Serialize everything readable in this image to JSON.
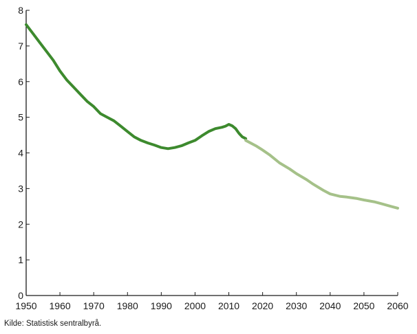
{
  "chart_data": {
    "type": "line",
    "title": "",
    "xlabel": "",
    "ylabel": "",
    "xlim": [
      1950,
      2060
    ],
    "ylim": [
      0,
      8
    ],
    "x_ticks": [
      1950,
      1960,
      1970,
      1980,
      1990,
      2000,
      2010,
      2020,
      2030,
      2040,
      2050,
      2060
    ],
    "y_ticks": [
      0,
      1,
      2,
      3,
      4,
      5,
      6,
      7,
      8
    ],
    "grid": false,
    "legend": "none",
    "series": [
      {
        "color": "#3d8a2e",
        "style": "historical",
        "x": [
          1950,
          1952,
          1954,
          1956,
          1958,
          1960,
          1962,
          1964,
          1966,
          1968,
          1970,
          1972,
          1974,
          1976,
          1978,
          1980,
          1982,
          1984,
          1986,
          1988,
          1990,
          1992,
          1994,
          1996,
          1998,
          2000,
          2002,
          2004,
          2006,
          2008,
          2009,
          2010,
          2011,
          2012,
          2013,
          2014,
          2015
        ],
        "y": [
          7.6,
          7.35,
          7.1,
          6.85,
          6.6,
          6.3,
          6.05,
          5.85,
          5.65,
          5.45,
          5.3,
          5.1,
          5.0,
          4.9,
          4.75,
          4.6,
          4.45,
          4.35,
          4.28,
          4.22,
          4.15,
          4.12,
          4.15,
          4.2,
          4.28,
          4.35,
          4.48,
          4.6,
          4.68,
          4.72,
          4.75,
          4.8,
          4.76,
          4.68,
          4.55,
          4.45,
          4.4
        ]
      },
      {
        "color": "#a5c189",
        "style": "projection",
        "x": [
          2015,
          2018,
          2020,
          2022,
          2025,
          2028,
          2030,
          2033,
          2035,
          2038,
          2040,
          2043,
          2045,
          2048,
          2050,
          2053,
          2055,
          2058,
          2060
        ],
        "y": [
          4.35,
          4.2,
          4.08,
          3.95,
          3.72,
          3.55,
          3.42,
          3.25,
          3.12,
          2.95,
          2.85,
          2.78,
          2.76,
          2.72,
          2.68,
          2.63,
          2.58,
          2.5,
          2.45
        ]
      }
    ]
  },
  "source_note": "Kilde: Statistisk sentralbyrå."
}
